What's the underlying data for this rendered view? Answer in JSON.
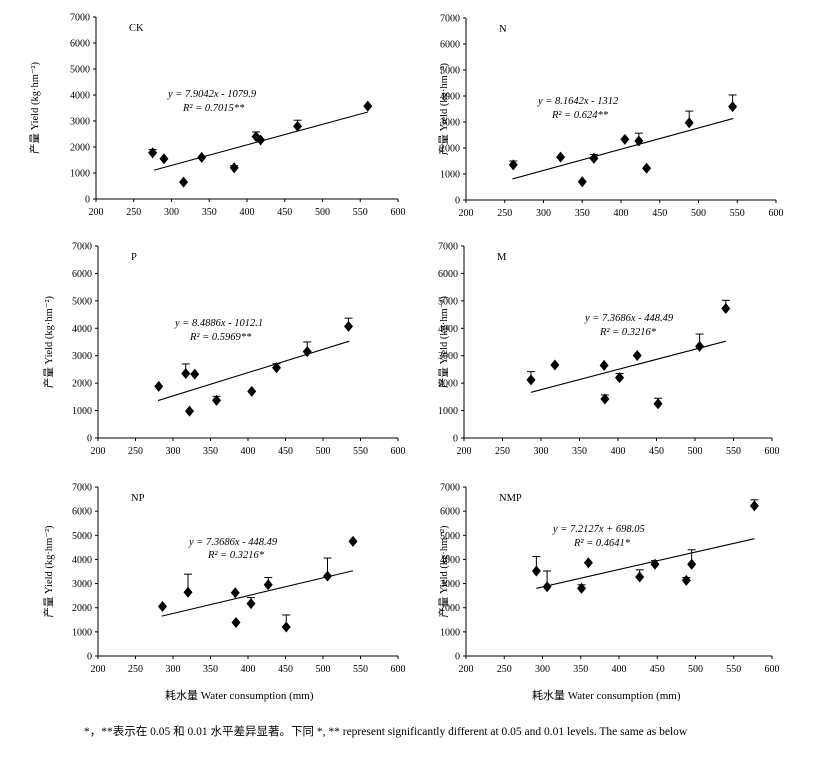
{
  "figure": {
    "ylabel": "产量 Yield (kg·hm⁻²)",
    "xlabel": "耗水量 Water consumption (mm)",
    "footnote": "*，**表示在 0.05 和 0.01 水平差异显著。下同    *, ** represent significantly different at 0.05 and 0.01 levels. The same as below"
  },
  "chart_data": [
    {
      "type": "scatter",
      "title": "CK",
      "xlim": [
        200,
        600
      ],
      "ylim": [
        0,
        7000
      ],
      "xticks": [
        "200",
        "250",
        "300",
        "350",
        "400",
        "450",
        "500",
        "550",
        "600"
      ],
      "yticks": [
        "0",
        "1000",
        "2000",
        "3000",
        "4000",
        "5000",
        "6000",
        "7000"
      ],
      "equation": "y = 7.9042x - 1079.9",
      "r2": "R² = 0.7015**",
      "fit": {
        "slope": 7.9042,
        "intercept": -1079.9,
        "x": [
          277,
          560
        ]
      },
      "points": [
        {
          "x": 275,
          "y": 1780,
          "err": 120
        },
        {
          "x": 290,
          "y": 1550,
          "err": 0
        },
        {
          "x": 316,
          "y": 650,
          "err": 0
        },
        {
          "x": 340,
          "y": 1600,
          "err": 0
        },
        {
          "x": 383,
          "y": 1200,
          "err": 80
        },
        {
          "x": 412,
          "y": 2400,
          "err": 180
        },
        {
          "x": 418,
          "y": 2270,
          "err": 0
        },
        {
          "x": 467,
          "y": 2800,
          "err": 230
        },
        {
          "x": 560,
          "y": 3570,
          "err": 0
        }
      ]
    },
    {
      "type": "scatter",
      "title": "N",
      "xlim": [
        200,
        600
      ],
      "ylim": [
        0,
        7000
      ],
      "xticks": [
        "200",
        "250",
        "300",
        "350",
        "400",
        "450",
        "500",
        "550",
        "600"
      ],
      "yticks": [
        "0",
        "1000",
        "2000",
        "3000",
        "4000",
        "5000",
        "6000",
        "7000"
      ],
      "equation": "y = 8.1642x - 1312",
      "r2": "R² = 0.624**",
      "fit": {
        "slope": 8.1642,
        "intercept": -1312,
        "x": [
          260,
          545
        ]
      },
      "points": [
        {
          "x": 261,
          "y": 1350,
          "err": 150
        },
        {
          "x": 322,
          "y": 1650,
          "err": 0
        },
        {
          "x": 350,
          "y": 700,
          "err": 0
        },
        {
          "x": 365,
          "y": 1600,
          "err": 150
        },
        {
          "x": 405,
          "y": 2330,
          "err": 0
        },
        {
          "x": 423,
          "y": 2270,
          "err": 300
        },
        {
          "x": 433,
          "y": 1220,
          "err": 0
        },
        {
          "x": 488,
          "y": 2970,
          "err": 450
        },
        {
          "x": 544,
          "y": 3590,
          "err": 450
        }
      ]
    },
    {
      "type": "scatter",
      "title": "P",
      "xlim": [
        200,
        600
      ],
      "ylim": [
        0,
        7000
      ],
      "xticks": [
        "200",
        "250",
        "300",
        "350",
        "400",
        "450",
        "500",
        "550",
        "600"
      ],
      "yticks": [
        "0",
        "1000",
        "2000",
        "3000",
        "4000",
        "5000",
        "6000",
        "7000"
      ],
      "equation": "y = 8.4886x - 1012.1",
      "r2": "R² = 0.5969**",
      "fit": {
        "slope": 8.4886,
        "intercept": -1012.1,
        "x": [
          280,
          535
        ]
      },
      "points": [
        {
          "x": 281,
          "y": 1880,
          "err": 0
        },
        {
          "x": 317,
          "y": 2350,
          "err": 350
        },
        {
          "x": 322,
          "y": 980,
          "err": 0
        },
        {
          "x": 329,
          "y": 2330,
          "err": 0
        },
        {
          "x": 358,
          "y": 1370,
          "err": 150
        },
        {
          "x": 405,
          "y": 1700,
          "err": 0
        },
        {
          "x": 438,
          "y": 2560,
          "err": 150
        },
        {
          "x": 479,
          "y": 3150,
          "err": 350
        },
        {
          "x": 534,
          "y": 4070,
          "err": 300
        }
      ]
    },
    {
      "type": "scatter",
      "title": "M",
      "xlim": [
        200,
        600
      ],
      "ylim": [
        0,
        7000
      ],
      "xticks": [
        "200",
        "250",
        "300",
        "350",
        "400",
        "450",
        "500",
        "550",
        "600"
      ],
      "yticks": [
        "0",
        "1000",
        "2000",
        "3000",
        "4000",
        "5000",
        "6000",
        "7000"
      ],
      "equation": "y = 7.3686x - 448.49",
      "r2": "R² = 0.3216*",
      "fit": {
        "slope": 7.3686,
        "intercept": -448.49,
        "x": [
          287,
          540
        ]
      },
      "points": [
        {
          "x": 287,
          "y": 2120,
          "err": 300
        },
        {
          "x": 318,
          "y": 2660,
          "err": 0
        },
        {
          "x": 382,
          "y": 2650,
          "err": 0
        },
        {
          "x": 383,
          "y": 1420,
          "err": 150
        },
        {
          "x": 402,
          "y": 2200,
          "err": 150
        },
        {
          "x": 425,
          "y": 3010,
          "err": 0
        },
        {
          "x": 452,
          "y": 1250,
          "err": 200
        },
        {
          "x": 506,
          "y": 3340,
          "err": 450
        },
        {
          "x": 540,
          "y": 4720,
          "err": 300
        }
      ]
    },
    {
      "type": "scatter",
      "title": "NP",
      "xlim": [
        200,
        600
      ],
      "ylim": [
        0,
        7000
      ],
      "xticks": [
        "200",
        "250",
        "300",
        "350",
        "400",
        "450",
        "500",
        "550",
        "600"
      ],
      "yticks": [
        "0",
        "1000",
        "2000",
        "3000",
        "4000",
        "5000",
        "6000",
        "7000"
      ],
      "equation": "y = 7.3686x - 448.49",
      "r2": "R² = 0.3216*",
      "fit": {
        "slope": 7.3686,
        "intercept": -448.49,
        "x": [
          285,
          540
        ]
      },
      "points": [
        {
          "x": 286,
          "y": 2050,
          "err": 0
        },
        {
          "x": 320,
          "y": 2640,
          "err": 750
        },
        {
          "x": 383,
          "y": 2620,
          "err": 0
        },
        {
          "x": 384,
          "y": 1390,
          "err": 0
        },
        {
          "x": 404,
          "y": 2170,
          "err": 250
        },
        {
          "x": 427,
          "y": 2950,
          "err": 300
        },
        {
          "x": 451,
          "y": 1200,
          "err": 500
        },
        {
          "x": 506,
          "y": 3310,
          "err": 750
        },
        {
          "x": 540,
          "y": 4750,
          "err": 0
        }
      ]
    },
    {
      "type": "scatter",
      "title": "NMP",
      "xlim": [
        200,
        600
      ],
      "ylim": [
        0,
        7000
      ],
      "xticks": [
        "200",
        "250",
        "300",
        "350",
        "400",
        "450",
        "500",
        "550",
        "600"
      ],
      "yticks": [
        "0",
        "1000",
        "2000",
        "3000",
        "4000",
        "5000",
        "6000",
        "7000"
      ],
      "equation": "y = 7.2127x + 698.05",
      "r2": "R² = 0.4641*",
      "fit": {
        "slope": 7.2127,
        "intercept": 698.05,
        "x": [
          292,
          577
        ]
      },
      "points": [
        {
          "x": 292,
          "y": 3520,
          "err": 600
        },
        {
          "x": 306,
          "y": 2870,
          "err": 650
        },
        {
          "x": 351,
          "y": 2800,
          "err": 150
        },
        {
          "x": 360,
          "y": 3860,
          "err": 0
        },
        {
          "x": 427,
          "y": 3270,
          "err": 300
        },
        {
          "x": 447,
          "y": 3800,
          "err": 150
        },
        {
          "x": 488,
          "y": 3130,
          "err": 120
        },
        {
          "x": 495,
          "y": 3800,
          "err": 600
        },
        {
          "x": 577,
          "y": 6220,
          "err": 250
        }
      ]
    }
  ]
}
